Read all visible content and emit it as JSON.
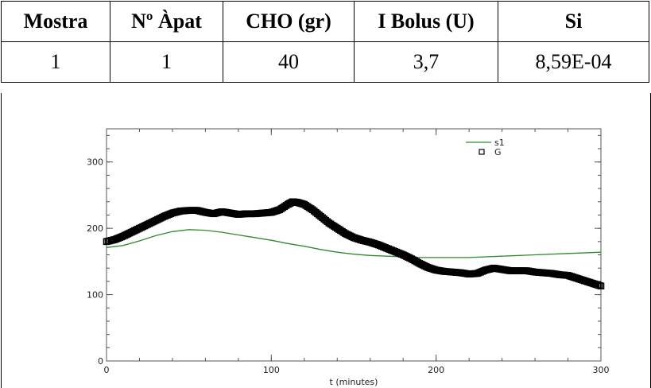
{
  "table": {
    "headers": [
      "Mostra",
      "Nº Àpat",
      "CHO (gr)",
      "I Bolus (U)",
      "Si"
    ],
    "row": [
      "1",
      "1",
      "40",
      "3,7",
      "8,59E-04"
    ]
  },
  "chart_data": {
    "type": "line",
    "xlabel": "t (minutes)",
    "ylabel": "",
    "xlim": [
      0,
      300
    ],
    "ylim": [
      0,
      350
    ],
    "x_ticks": [
      0,
      100,
      200,
      300
    ],
    "y_ticks": [
      0,
      100,
      200,
      300
    ],
    "x_tick_labels": [
      "0",
      "100",
      "200",
      "300"
    ],
    "y_tick_labels": [
      "0",
      "100",
      "200",
      "300"
    ],
    "legend_placement": "top-right",
    "series": [
      {
        "name": "s1",
        "style": "line",
        "color": "#2e8b2e",
        "points": [
          [
            0,
            171
          ],
          [
            10,
            174
          ],
          [
            20,
            181
          ],
          [
            30,
            189
          ],
          [
            40,
            195
          ],
          [
            50,
            198
          ],
          [
            60,
            197
          ],
          [
            70,
            194
          ],
          [
            80,
            190
          ],
          [
            90,
            186
          ],
          [
            100,
            182
          ],
          [
            110,
            177
          ],
          [
            120,
            173
          ],
          [
            130,
            168
          ],
          [
            140,
            164
          ],
          [
            150,
            161
          ],
          [
            160,
            159
          ],
          [
            170,
            158
          ],
          [
            180,
            157
          ],
          [
            190,
            156
          ],
          [
            200,
            156
          ],
          [
            220,
            156
          ],
          [
            240,
            158
          ],
          [
            260,
            160
          ],
          [
            280,
            162
          ],
          [
            300,
            164
          ]
        ]
      },
      {
        "name": "G",
        "style": "markers",
        "color": "#000000",
        "points": [
          [
            0,
            180
          ],
          [
            5,
            183
          ],
          [
            10,
            188
          ],
          [
            15,
            194
          ],
          [
            20,
            200
          ],
          [
            25,
            206
          ],
          [
            30,
            212
          ],
          [
            35,
            218
          ],
          [
            40,
            223
          ],
          [
            45,
            226
          ],
          [
            50,
            227
          ],
          [
            55,
            227
          ],
          [
            60,
            224
          ],
          [
            65,
            222
          ],
          [
            70,
            225
          ],
          [
            75,
            223
          ],
          [
            80,
            221
          ],
          [
            85,
            222
          ],
          [
            90,
            222
          ],
          [
            95,
            223
          ],
          [
            100,
            224
          ],
          [
            105,
            228
          ],
          [
            110,
            236
          ],
          [
            113,
            240
          ],
          [
            116,
            239
          ],
          [
            120,
            236
          ],
          [
            125,
            228
          ],
          [
            130,
            218
          ],
          [
            135,
            208
          ],
          [
            140,
            200
          ],
          [
            145,
            192
          ],
          [
            150,
            186
          ],
          [
            155,
            182
          ],
          [
            160,
            179
          ],
          [
            165,
            175
          ],
          [
            170,
            170
          ],
          [
            175,
            165
          ],
          [
            180,
            160
          ],
          [
            185,
            154
          ],
          [
            190,
            147
          ],
          [
            195,
            141
          ],
          [
            200,
            137
          ],
          [
            205,
            135
          ],
          [
            210,
            134
          ],
          [
            215,
            133
          ],
          [
            220,
            131
          ],
          [
            225,
            132
          ],
          [
            230,
            137
          ],
          [
            235,
            140
          ],
          [
            240,
            138
          ],
          [
            245,
            136
          ],
          [
            250,
            136
          ],
          [
            255,
            136
          ],
          [
            260,
            134
          ],
          [
            265,
            133
          ],
          [
            270,
            132
          ],
          [
            275,
            130
          ],
          [
            280,
            129
          ],
          [
            285,
            125
          ],
          [
            290,
            121
          ],
          [
            295,
            117
          ],
          [
            300,
            113
          ]
        ]
      }
    ]
  }
}
